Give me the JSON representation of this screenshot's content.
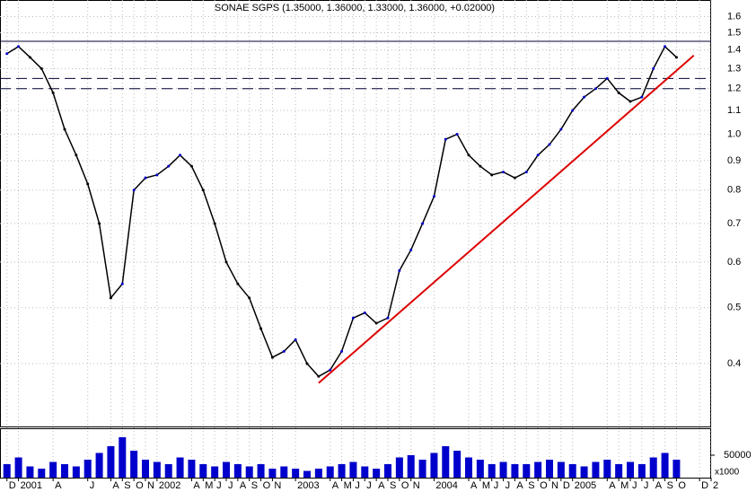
{
  "chart_data": {
    "type": "stock",
    "title": "SONAE SGPS (1.35000, 1.36000, 1.33000, 1.36000, +0.02000)",
    "x": [
      0,
      1,
      2,
      3,
      4,
      5,
      6,
      7,
      8,
      9,
      10,
      11,
      12,
      13,
      14,
      15,
      16,
      17,
      18,
      19,
      20,
      21,
      22,
      23,
      24,
      25,
      26,
      27,
      28,
      29,
      30,
      31,
      32,
      33,
      34,
      35,
      36,
      37,
      38,
      39,
      40,
      41,
      42,
      43,
      44,
      45,
      46,
      47,
      48,
      49,
      50,
      51,
      52,
      53,
      54,
      55,
      56,
      57,
      58
    ],
    "series": [
      {
        "name": "Close",
        "color": "#000000",
        "values": [
          1.38,
          1.42,
          1.36,
          1.3,
          1.18,
          1.02,
          0.92,
          0.82,
          0.7,
          0.52,
          0.55,
          0.8,
          0.84,
          0.85,
          0.88,
          0.92,
          0.88,
          0.8,
          0.7,
          0.6,
          0.55,
          0.52,
          0.46,
          0.41,
          0.42,
          0.44,
          0.4,
          0.38,
          0.39,
          0.42,
          0.48,
          0.49,
          0.47,
          0.48,
          0.58,
          0.63,
          0.7,
          0.78,
          0.98,
          1.0,
          0.92,
          0.88,
          0.85,
          0.86,
          0.84,
          0.86,
          0.92,
          0.96,
          1.02,
          1.1,
          1.16,
          1.2,
          1.25,
          1.18,
          1.14,
          1.16,
          1.3,
          1.42,
          1.36
        ]
      },
      {
        "name": "Volume",
        "color": "#0000cc",
        "axis": "y2",
        "values": [
          30000,
          45000,
          25000,
          20000,
          35000,
          30000,
          25000,
          40000,
          55000,
          70000,
          90000,
          60000,
          40000,
          35000,
          30000,
          45000,
          40000,
          30000,
          25000,
          35000,
          30000,
          25000,
          30000,
          20000,
          25000,
          20000,
          15000,
          20000,
          25000,
          30000,
          35000,
          25000,
          20000,
          30000,
          45000,
          50000,
          40000,
          55000,
          70000,
          60000,
          45000,
          40000,
          30000,
          35000,
          30000,
          30000,
          35000,
          40000,
          35000,
          30000,
          25000,
          35000,
          40000,
          30000,
          35000,
          30000,
          45000,
          55000,
          40000
        ]
      }
    ],
    "log_y": true,
    "ylim": [
      0.31,
      1.71
    ],
    "yticks": [
      0.4,
      0.5,
      0.6,
      0.7,
      0.8,
      0.9,
      {
        "value": 1.0,
        "label": "1.0"
      },
      1.1,
      1.2,
      1.3,
      1.4,
      1.5,
      1.6
    ],
    "y2lim": [
      0,
      100000
    ],
    "y2ticks": [
      50000
    ],
    "y2_label": "x1000",
    "xlim": [
      -0.6,
      61
    ],
    "xticks": [
      {
        "value": 0,
        "label": "D"
      },
      {
        "value": 1,
        "label": "2001"
      },
      {
        "value": 4,
        "label": "A"
      },
      {
        "value": 7,
        "label": "J"
      },
      {
        "value": 9,
        "label": "A"
      },
      {
        "value": 10,
        "label": "S"
      },
      {
        "value": 11,
        "label": "O"
      },
      {
        "value": 12,
        "label": "N"
      },
      {
        "value": 13,
        "label": "2002"
      },
      {
        "value": 16,
        "label": "A"
      },
      {
        "value": 17,
        "label": "M"
      },
      {
        "value": 18,
        "label": "J"
      },
      {
        "value": 19,
        "label": "J"
      },
      {
        "value": 20,
        "label": "A"
      },
      {
        "value": 21,
        "label": "S"
      },
      {
        "value": 22,
        "label": "O"
      },
      {
        "value": 23,
        "label": "N"
      },
      {
        "value": 25,
        "label": "2003"
      },
      {
        "value": 28,
        "label": "A"
      },
      {
        "value": 29,
        "label": "M"
      },
      {
        "value": 30,
        "label": "J"
      },
      {
        "value": 31,
        "label": "J"
      },
      {
        "value": 32,
        "label": "A"
      },
      {
        "value": 33,
        "label": "S"
      },
      {
        "value": 34,
        "label": "O"
      },
      {
        "value": 35,
        "label": "N"
      },
      {
        "value": 37,
        "label": "2004"
      },
      {
        "value": 40,
        "label": "A"
      },
      {
        "value": 41,
        "label": "M"
      },
      {
        "value": 42,
        "label": "J"
      },
      {
        "value": 43,
        "label": "J"
      },
      {
        "value": 44,
        "label": "A"
      },
      {
        "value": 45,
        "label": "S"
      },
      {
        "value": 46,
        "label": "O"
      },
      {
        "value": 47,
        "label": "N"
      },
      {
        "value": 48,
        "label": "D"
      },
      {
        "value": 49,
        "label": "2005"
      },
      {
        "value": 52,
        "label": "A"
      },
      {
        "value": 53,
        "label": "M"
      },
      {
        "value": 54,
        "label": "J"
      },
      {
        "value": 55,
        "label": "J"
      },
      {
        "value": 56,
        "label": "A"
      },
      {
        "value": 57,
        "label": "S"
      },
      {
        "value": 58,
        "label": "O"
      },
      {
        "value": 60,
        "label": "D"
      },
      {
        "value": 61,
        "label": "2"
      }
    ],
    "grid": true,
    "hlines": [
      {
        "value": 1.45,
        "style": "solid"
      },
      {
        "value": 1.25,
        "style": "dashed"
      },
      {
        "value": 1.2,
        "style": "dashed"
      }
    ],
    "trendline": {
      "x": [
        27,
        59.5
      ],
      "y": [
        0.37,
        1.37
      ],
      "color": "#dd0000"
    }
  }
}
